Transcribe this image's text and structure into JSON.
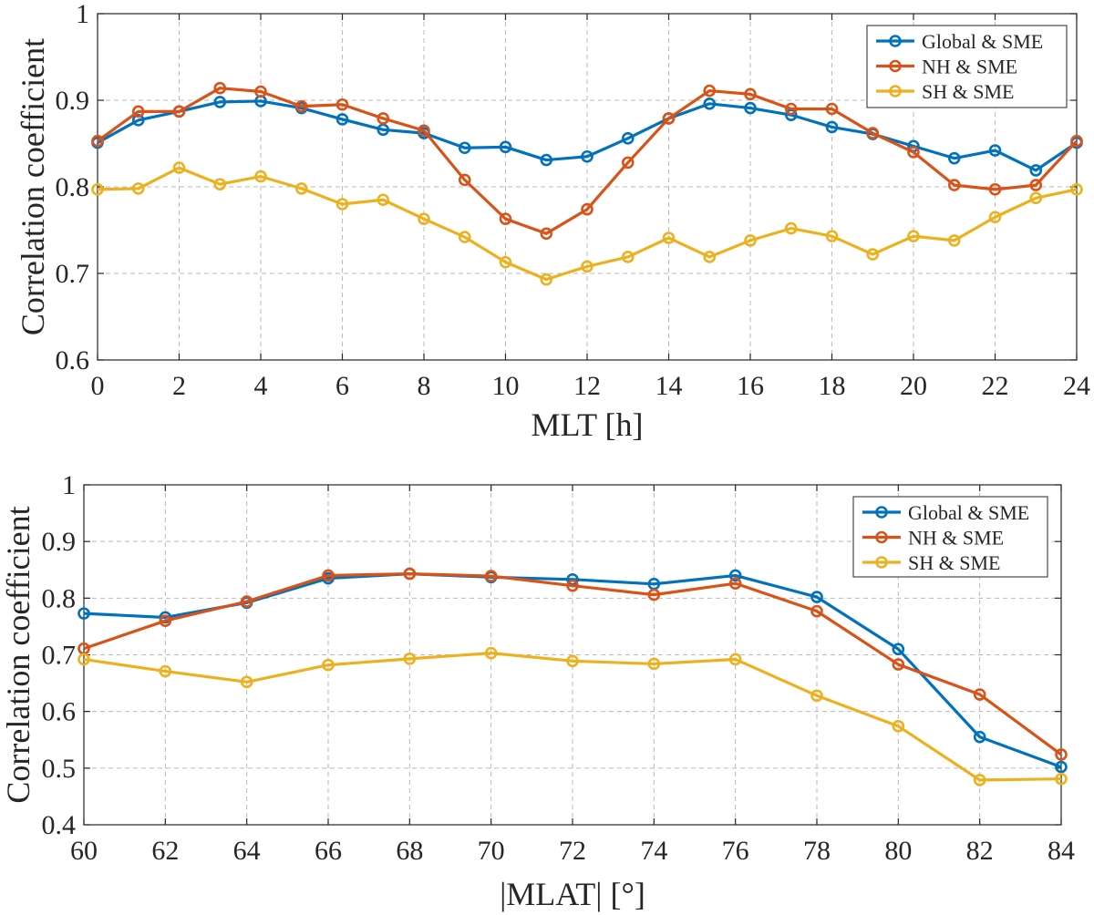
{
  "chart_data": [
    {
      "type": "line",
      "xlabel": "MLT [h]",
      "ylabel": "Correlation coefficient",
      "xlim": [
        0,
        24
      ],
      "ylim": [
        0.6,
        1
      ],
      "xticks": [
        0,
        2,
        4,
        6,
        8,
        10,
        12,
        14,
        16,
        18,
        20,
        22,
        24
      ],
      "yticks": [
        0.6,
        0.7,
        0.8,
        0.9,
        1
      ],
      "xtick_labels": [
        "0",
        "2",
        "4",
        "6",
        "8",
        "10",
        "12",
        "14",
        "16",
        "18",
        "20",
        "22",
        "24"
      ],
      "ytick_labels": [
        "0.6",
        "0.7",
        "0.8",
        "0.9",
        "1"
      ],
      "grid": true,
      "legend_position": "top-right",
      "x": [
        0,
        1,
        2,
        3,
        4,
        5,
        6,
        7,
        8,
        9,
        10,
        11,
        12,
        13,
        14,
        15,
        16,
        17,
        18,
        19,
        20,
        21,
        22,
        23,
        24
      ],
      "series": [
        {
          "name": "Global & SME",
          "color": "#0072BD",
          "values": [
            0.851,
            0.877,
            0.887,
            0.898,
            0.899,
            0.891,
            0.878,
            0.866,
            0.862,
            0.845,
            0.846,
            0.831,
            0.835,
            0.856,
            0.879,
            0.896,
            0.891,
            0.883,
            0.869,
            0.861,
            0.847,
            0.833,
            0.842,
            0.819,
            0.851
          ]
        },
        {
          "name": "NH & SME",
          "color": "#D95319",
          "values": [
            0.853,
            0.887,
            0.887,
            0.914,
            0.91,
            0.893,
            0.895,
            0.879,
            0.865,
            0.808,
            0.763,
            0.746,
            0.774,
            0.828,
            0.879,
            0.911,
            0.907,
            0.89,
            0.89,
            0.862,
            0.84,
            0.802,
            0.797,
            0.802,
            0.853
          ]
        },
        {
          "name": "SH & SME",
          "color": "#EDB120",
          "values": [
            0.797,
            0.798,
            0.822,
            0.803,
            0.812,
            0.798,
            0.78,
            0.785,
            0.763,
            0.742,
            0.713,
            0.693,
            0.708,
            0.719,
            0.741,
            0.719,
            0.738,
            0.752,
            0.743,
            0.722,
            0.743,
            0.738,
            0.765,
            0.787,
            0.797
          ]
        }
      ]
    },
    {
      "type": "line",
      "xlabel": "|MLAT| [°]",
      "ylabel": "Correlation coefficient",
      "xlim": [
        60,
        84
      ],
      "ylim": [
        0.4,
        1
      ],
      "xticks": [
        60,
        62,
        64,
        66,
        68,
        70,
        72,
        74,
        76,
        78,
        80,
        82,
        84
      ],
      "yticks": [
        0.4,
        0.5,
        0.6,
        0.7,
        0.8,
        0.9,
        1
      ],
      "xtick_labels": [
        "60",
        "62",
        "64",
        "66",
        "68",
        "70",
        "72",
        "74",
        "76",
        "78",
        "80",
        "82",
        "84"
      ],
      "ytick_labels": [
        "0.4",
        "0.5",
        "0.6",
        "0.7",
        "0.8",
        "0.9",
        "1"
      ],
      "grid": true,
      "legend_position": "top-right",
      "x": [
        60,
        62,
        64,
        66,
        68,
        70,
        72,
        74,
        76,
        78,
        80,
        82,
        84
      ],
      "series": [
        {
          "name": "Global & SME",
          "color": "#0072BD",
          "values": [
            0.773,
            0.766,
            0.792,
            0.835,
            0.843,
            0.837,
            0.833,
            0.825,
            0.84,
            0.802,
            0.71,
            0.555,
            0.502
          ]
        },
        {
          "name": "NH & SME",
          "color": "#D95319",
          "values": [
            0.711,
            0.76,
            0.794,
            0.84,
            0.843,
            0.839,
            0.822,
            0.806,
            0.826,
            0.777,
            0.683,
            0.63,
            0.524
          ]
        },
        {
          "name": "SH & SME",
          "color": "#EDB120",
          "values": [
            0.692,
            0.671,
            0.652,
            0.682,
            0.693,
            0.703,
            0.689,
            0.684,
            0.692,
            0.628,
            0.574,
            0.479,
            0.481
          ]
        }
      ]
    }
  ]
}
